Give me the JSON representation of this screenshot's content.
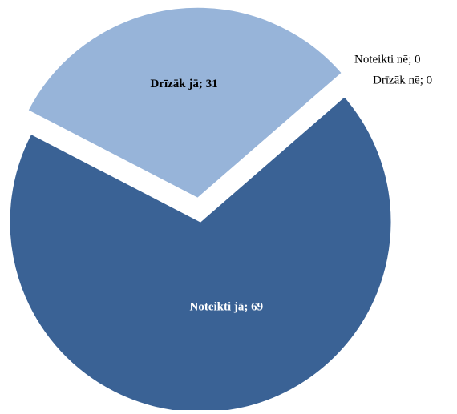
{
  "chart_data": {
    "type": "pie",
    "categories": [
      "Noteikti jā",
      "Drīzāk jā",
      "Noteikti nē",
      "Drīzāk nē"
    ],
    "values": [
      69,
      31,
      0,
      0
    ],
    "value_labels": [
      "Noteikti jā; 69",
      "Drīzāk jā; 31",
      "Noteikti nē; 0",
      "Drīzāk nē; 0"
    ],
    "colors": [
      "#3a6295",
      "#97b4d9",
      "#6b8fc0",
      "#b8cce6"
    ]
  }
}
